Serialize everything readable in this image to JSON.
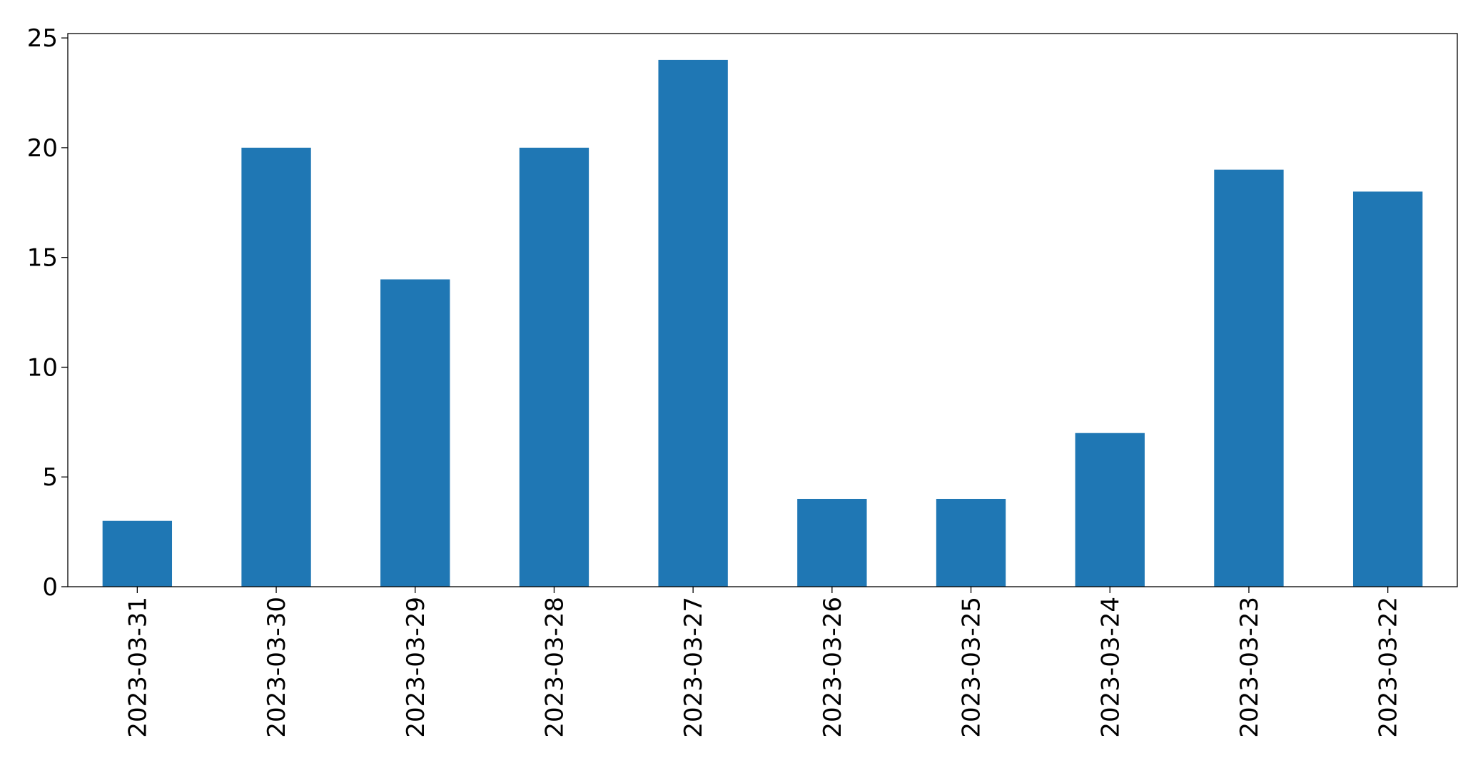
{
  "chart_data": {
    "type": "bar",
    "title": "",
    "xlabel": "",
    "ylabel": "",
    "categories": [
      "2023-03-31",
      "2023-03-30",
      "2023-03-29",
      "2023-03-28",
      "2023-03-27",
      "2023-03-26",
      "2023-03-25",
      "2023-03-24",
      "2023-03-23",
      "2023-03-22"
    ],
    "values": [
      3,
      20,
      14,
      20,
      24,
      4,
      4,
      7,
      19,
      18
    ],
    "ylim": [
      0,
      25.2
    ],
    "yticks": [
      0,
      5,
      10,
      15,
      20,
      25
    ],
    "ytick_labels": [
      "0",
      "5",
      "10",
      "15",
      "20",
      "25"
    ],
    "grid": false,
    "legend": "none",
    "x_tick_rotation": "vertical",
    "colors": {
      "bar": "#1f77b4",
      "axis": "#000000",
      "background": "#ffffff"
    }
  }
}
